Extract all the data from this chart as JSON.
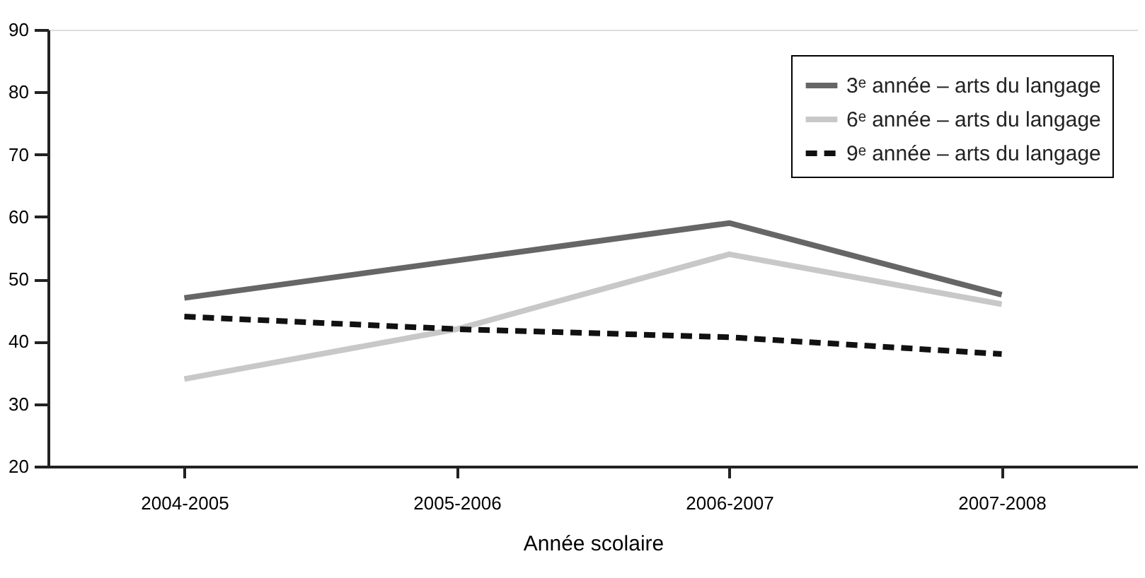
{
  "chart_data": {
    "type": "line",
    "xlabel": "Année scolaire",
    "categories": [
      "2004-2005",
      "2005-2006",
      "2006-2007",
      "2007-2008"
    ],
    "series": [
      {
        "name": "3ᵉ année – arts du langage",
        "color": "#666666",
        "line_style": "solid",
        "values": [
          47,
          53,
          59,
          47.5
        ]
      },
      {
        "name": "6ᵉ année – arts du langage",
        "color": "#c8c8c8",
        "line_style": "solid",
        "values": [
          34,
          42,
          54,
          46
        ]
      },
      {
        "name": "9ᵉ année – arts du langage",
        "color": "#111111",
        "line_style": "dashed",
        "values": [
          44,
          42,
          40.7,
          38
        ]
      }
    ],
    "ylim": [
      20,
      90
    ],
    "yticks": [
      20,
      30,
      40,
      50,
      60,
      70,
      80,
      90
    ],
    "grid": false,
    "legend": "top right",
    "marker": "none"
  }
}
